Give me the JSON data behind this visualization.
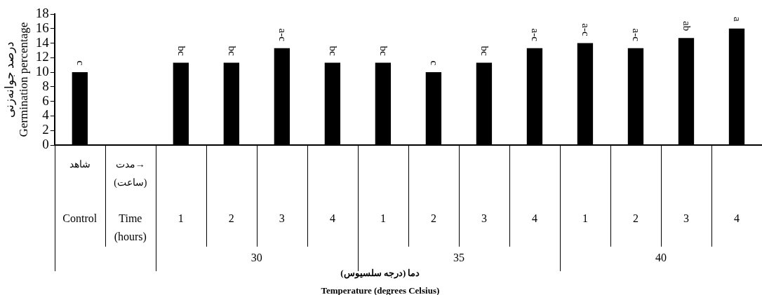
{
  "chart_data": {
    "type": "bar",
    "categories": [
      "شاهد\nControl",
      "مدت→\n(ساعت)\nTime\n(hours)",
      "1",
      "2",
      "3",
      "4",
      "1",
      "2",
      "3",
      "4",
      "1",
      "2",
      "3",
      "4"
    ],
    "values": [
      10,
      null,
      11.3,
      11.3,
      13.3,
      11.3,
      11.3,
      10,
      11.3,
      13.3,
      14,
      13.3,
      14.7,
      16
    ],
    "value_labels": [
      "c",
      null,
      "bc",
      "bc",
      "a-c",
      "bc",
      "bc",
      "c",
      "bc",
      "a-c",
      "a-c",
      "a-c",
      "ab",
      "a"
    ],
    "color": "#000000",
    "ylim": [
      0,
      18
    ],
    "yticks": [
      0,
      2,
      4,
      6,
      8,
      10,
      12,
      14,
      16,
      18
    ],
    "ylabel": "درصد جوانه‌زنی\nGermination percentage",
    "xlabel": "دما (درجه سلسیوس)\nTemperature (degrees Celsius)",
    "annotations": [
      "30",
      "35",
      "40"
    ],
    "grid": false,
    "legend": false
  }
}
